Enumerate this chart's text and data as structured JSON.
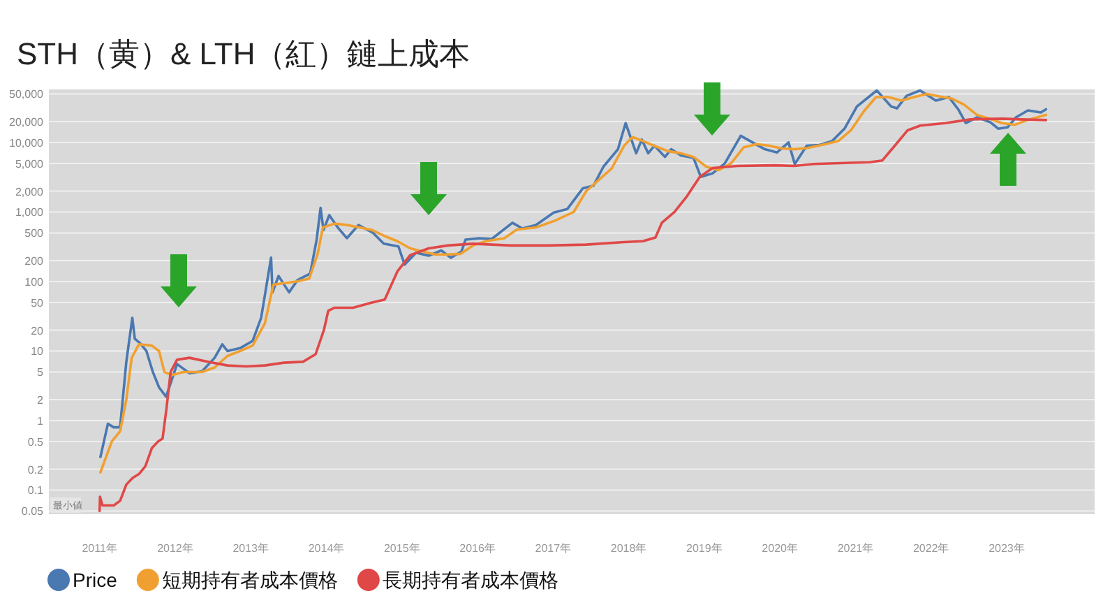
{
  "chart_data": {
    "type": "line",
    "title": "STH（黄）& LTH（紅）鏈上成本",
    "log": "y",
    "grid": "y",
    "legend": "bottom left",
    "xlim": [
      "2010-05-01",
      "2024-03-01"
    ],
    "xticks": [
      {
        "value": "2011-01-01",
        "label": "2011年"
      },
      {
        "value": "2012-01-01",
        "label": "2012年"
      },
      {
        "value": "2013-01-01",
        "label": "2013年"
      },
      {
        "value": "2014-01-01",
        "label": "2014年"
      },
      {
        "value": "2015-01-01",
        "label": "2015年"
      },
      {
        "value": "2016-01-01",
        "label": "2016年"
      },
      {
        "value": "2017-01-01",
        "label": "2017年"
      },
      {
        "value": "2018-01-01",
        "label": "2018年"
      },
      {
        "value": "2019-01-01",
        "label": "2019年"
      },
      {
        "value": "2020-01-01",
        "label": "2020年"
      },
      {
        "value": "2021-01-01",
        "label": "2021年"
      },
      {
        "value": "2022-01-01",
        "label": "2022年"
      },
      {
        "value": "2023-01-01",
        "label": "2023年"
      }
    ],
    "ylim": [
      0.045,
      58000
    ],
    "yticks": [
      0.05,
      0.1,
      0.2,
      0.5,
      1,
      2,
      5,
      10,
      20,
      50,
      100,
      200,
      500,
      {
        "value": 1000,
        "label": "1,000"
      },
      {
        "value": 2000,
        "label": "2,000"
      },
      {
        "value": 5000,
        "label": "5,000"
      },
      {
        "value": 10000,
        "label": "10,000"
      },
      {
        "value": 20000,
        "label": "20,000"
      },
      {
        "value": 50000,
        "label": "50,000"
      }
    ],
    "annotations": [
      "最小値"
    ],
    "series": [
      {
        "name": "Price",
        "color": "#4a78b0",
        "x": [
          "2011-01-05",
          "2011-02-10",
          "2011-03-10",
          "2011-04-10",
          "2011-05-10",
          "2011-06-08",
          "2011-06-20",
          "2011-07-15",
          "2011-08-15",
          "2011-09-15",
          "2011-10-15",
          "2011-11-18",
          "2012-01-10",
          "2012-03-10",
          "2012-05-10",
          "2012-07-10",
          "2012-08-16",
          "2012-09-10",
          "2012-11-10",
          "2013-01-10",
          "2013-02-20",
          "2013-04-09",
          "2013-04-16",
          "2013-05-15",
          "2013-07-05",
          "2013-08-15",
          "2013-10-15",
          "2013-11-15",
          "2013-12-04",
          "2013-12-18",
          "2014-01-15",
          "2014-02-25",
          "2014-04-10",
          "2014-06-05",
          "2014-08-15",
          "2014-10-05",
          "2014-12-15",
          "2015-01-14",
          "2015-03-10",
          "2015-05-10",
          "2015-07-10",
          "2015-08-25",
          "2015-10-15",
          "2015-11-04",
          "2016-01-10",
          "2016-03-10",
          "2016-06-18",
          "2016-08-05",
          "2016-10-10",
          "2017-01-04",
          "2017-03-10",
          "2017-05-25",
          "2017-07-15",
          "2017-09-01",
          "2017-11-10",
          "2017-12-17",
          "2018-02-06",
          "2018-03-05",
          "2018-04-05",
          "2018-05-05",
          "2018-06-25",
          "2018-07-25",
          "2018-09-10",
          "2018-11-10",
          "2018-12-15",
          "2019-02-10",
          "2019-04-10",
          "2019-06-26",
          "2019-08-10",
          "2019-10-20",
          "2019-12-18",
          "2020-02-12",
          "2020-03-13",
          "2020-05-10",
          "2020-07-10",
          "2020-09-10",
          "2020-11-10",
          "2021-01-08",
          "2021-04-14",
          "2021-06-22",
          "2021-07-20",
          "2021-09-05",
          "2021-11-09",
          "2022-01-24",
          "2022-03-28",
          "2022-05-12",
          "2022-06-18",
          "2022-08-12",
          "2022-10-15",
          "2022-11-21",
          "2023-01-05",
          "2023-02-15",
          "2023-04-14",
          "2023-06-15",
          "2023-07-10"
        ],
        "values": [
          0.3,
          0.9,
          0.8,
          0.8,
          7,
          30,
          15,
          13,
          10,
          5,
          3,
          2.2,
          6.5,
          4.8,
          5.1,
          8,
          12.5,
          10,
          11,
          14,
          30,
          220,
          70,
          120,
          70,
          105,
          130,
          400,
          1150,
          550,
          900,
          600,
          420,
          650,
          500,
          350,
          320,
          175,
          260,
          235,
          280,
          220,
          270,
          400,
          420,
          410,
          700,
          580,
          650,
          980,
          1100,
          2200,
          2400,
          4500,
          8000,
          19000,
          7000,
          11000,
          7000,
          9000,
          6200,
          8000,
          6500,
          6000,
          3200,
          3600,
          5000,
          12500,
          10500,
          8000,
          7200,
          10000,
          4900,
          9000,
          9200,
          10500,
          16000,
          33000,
          56000,
          33000,
          31000,
          47000,
          56000,
          40000,
          45000,
          30000,
          19000,
          23000,
          19500,
          15800,
          16500,
          23000,
          29000,
          27000,
          30000
        ]
      },
      {
        "name": "短期持有者成本價格",
        "color": "#f0a030",
        "x": [
          "2011-01-05",
          "2011-03-01",
          "2011-04-10",
          "2011-05-10",
          "2011-06-05",
          "2011-07-10",
          "2011-09-10",
          "2011-10-15",
          "2011-11-10",
          "2011-12-15",
          "2012-02-10",
          "2012-05-10",
          "2012-07-10",
          "2012-09-10",
          "2012-11-10",
          "2013-01-10",
          "2013-03-10",
          "2013-04-20",
          "2013-06-10",
          "2013-08-10",
          "2013-10-10",
          "2013-11-20",
          "2013-12-15",
          "2014-02-10",
          "2014-04-10",
          "2014-06-10",
          "2014-08-10",
          "2014-10-10",
          "2014-12-10",
          "2015-02-10",
          "2015-04-10",
          "2015-06-10",
          "2015-08-10",
          "2015-10-10",
          "2015-12-10",
          "2016-02-10",
          "2016-05-10",
          "2016-07-10",
          "2016-10-10",
          "2017-01-10",
          "2017-04-10",
          "2017-06-10",
          "2017-08-10",
          "2017-10-10",
          "2017-12-10",
          "2018-01-20",
          "2018-03-10",
          "2018-05-10",
          "2018-07-10",
          "2018-09-10",
          "2018-11-10",
          "2019-01-10",
          "2019-03-10",
          "2019-05-10",
          "2019-07-10",
          "2019-09-10",
          "2019-11-10",
          "2020-01-10",
          "2020-03-10",
          "2020-05-10",
          "2020-08-10",
          "2020-10-10",
          "2020-12-10",
          "2021-02-10",
          "2021-04-10",
          "2021-06-10",
          "2021-08-10",
          "2021-10-10",
          "2021-12-10",
          "2022-02-10",
          "2022-04-10",
          "2022-06-10",
          "2022-08-10",
          "2022-10-10",
          "2022-12-10",
          "2023-02-10",
          "2023-04-10",
          "2023-07-10"
        ],
        "values": [
          0.18,
          0.5,
          0.7,
          2,
          8,
          12.5,
          12,
          10,
          5,
          4.5,
          5,
          5,
          5.8,
          8.5,
          10,
          12,
          25,
          90,
          95,
          100,
          110,
          250,
          600,
          680,
          650,
          600,
          550,
          450,
          380,
          300,
          270,
          245,
          245,
          250,
          330,
          380,
          420,
          560,
          600,
          750,
          1000,
          2000,
          2900,
          4200,
          9000,
          12000,
          10500,
          8800,
          7500,
          7000,
          6200,
          4500,
          4000,
          5000,
          8500,
          9500,
          9000,
          8200,
          8000,
          8300,
          9500,
          10500,
          15000,
          28000,
          45000,
          45000,
          40000,
          45000,
          50000,
          46000,
          43000,
          35000,
          25000,
          22000,
          19000,
          18000,
          21000,
          25000
        ]
      },
      {
        "name": "長期持有者成本價格",
        "color": "#e04848",
        "x": [
          "2011-01-01",
          "2011-01-03",
          "2011-01-15",
          "2011-03-10",
          "2011-04-10",
          "2011-05-10",
          "2011-06-10",
          "2011-07-10",
          "2011-08-10",
          "2011-09-10",
          "2011-10-10",
          "2011-11-01",
          "2011-11-20",
          "2011-12-10",
          "2012-01-10",
          "2012-03-10",
          "2012-06-10",
          "2012-09-10",
          "2012-12-10",
          "2013-03-10",
          "2013-06-10",
          "2013-09-10",
          "2013-11-10",
          "2013-12-20",
          "2014-01-10",
          "2014-02-10",
          "2014-05-10",
          "2014-08-10",
          "2014-10-10",
          "2014-12-10",
          "2015-02-10",
          "2015-05-10",
          "2015-08-10",
          "2015-12-10",
          "2016-06-10",
          "2016-12-10",
          "2017-06-10",
          "2017-12-10",
          "2018-03-10",
          "2018-05-10",
          "2018-06-10",
          "2018-08-10",
          "2018-10-10",
          "2018-12-10",
          "2019-02-10",
          "2019-06-10",
          "2019-12-10",
          "2020-03-10",
          "2020-06-10",
          "2020-12-10",
          "2021-03-10",
          "2021-05-10",
          "2021-07-10",
          "2021-09-10",
          "2021-11-10",
          "2022-03-10",
          "2022-07-10",
          "2022-12-10",
          "2023-03-10",
          "2023-07-10"
        ],
        "values": [
          0.05,
          0.08,
          0.06,
          0.06,
          0.07,
          0.12,
          0.15,
          0.17,
          0.22,
          0.4,
          0.5,
          0.55,
          1.5,
          5,
          7.5,
          8,
          7,
          6.2,
          6,
          6.2,
          6.8,
          7,
          9,
          20,
          38,
          42,
          42,
          50,
          55,
          140,
          240,
          300,
          330,
          350,
          330,
          330,
          340,
          370,
          380,
          430,
          700,
          1000,
          1700,
          3200,
          4300,
          4600,
          4700,
          4600,
          4900,
          5100,
          5200,
          5500,
          9000,
          15000,
          17500,
          19000,
          21500,
          22000,
          21500,
          21000
        ]
      }
    ]
  }
}
